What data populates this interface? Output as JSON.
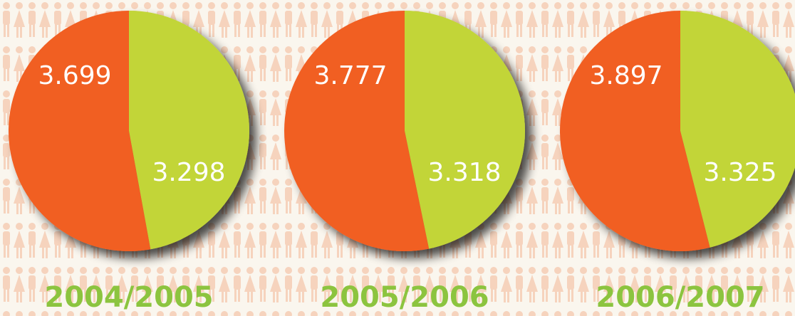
{
  "chart_data": [
    {
      "type": "pie",
      "title": "2004/2005",
      "values": [
        3.699,
        3.298
      ],
      "colors": [
        "#f15e24",
        "#c2d537"
      ]
    },
    {
      "type": "pie",
      "title": "2005/2006",
      "values": [
        3.777,
        3.318
      ],
      "colors": [
        "#f15e24",
        "#c2d537"
      ]
    },
    {
      "type": "pie",
      "title": "2006/2007",
      "values": [
        3.897,
        3.325
      ],
      "colors": [
        "#f15e24",
        "#c2d537"
      ]
    }
  ]
}
